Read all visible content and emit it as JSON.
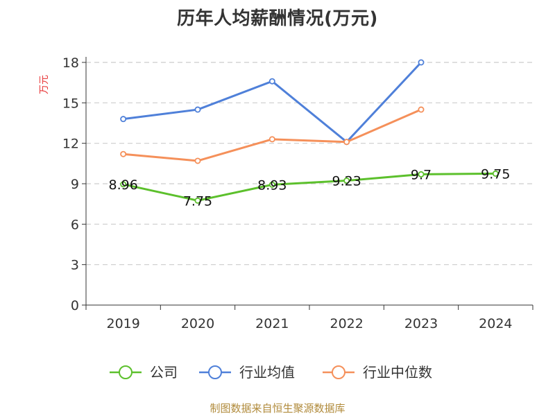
{
  "title": "历年人均薪酬情况(万元)",
  "footer": "制图数据来自恒生聚源数据库",
  "colors": {
    "company": "#5cc02c",
    "industry_avg": "#4f80d9",
    "industry_median": "#f5905a",
    "grid": "#cccccc",
    "axis": "#333333",
    "ylabel": "#e8393a",
    "footer": "#b08a3a"
  },
  "chart_data": {
    "type": "line",
    "title": "历年人均薪酬情况(万元)",
    "xlabel": "",
    "ylabel": "万元",
    "categories": [
      "2019",
      "2020",
      "2021",
      "2022",
      "2023",
      "2024"
    ],
    "ylim": [
      0,
      18
    ],
    "yticks": [
      0,
      3,
      6,
      9,
      12,
      15,
      18
    ],
    "grid": true,
    "legend_position": "bottom",
    "series": [
      {
        "name": "公司",
        "color": "#5cc02c",
        "values": [
          8.96,
          7.75,
          8.93,
          9.23,
          9.7,
          9.75
        ],
        "labels": [
          "8.96",
          "7.75",
          "8.93",
          "9.23",
          "9.7",
          "9.75"
        ]
      },
      {
        "name": "行业均值",
        "color": "#4f80d9",
        "values": [
          13.8,
          14.5,
          16.6,
          12.1,
          18.0,
          null
        ]
      },
      {
        "name": "行业中位数",
        "color": "#f5905a",
        "values": [
          11.2,
          10.7,
          12.3,
          12.1,
          14.5,
          null
        ]
      }
    ]
  }
}
